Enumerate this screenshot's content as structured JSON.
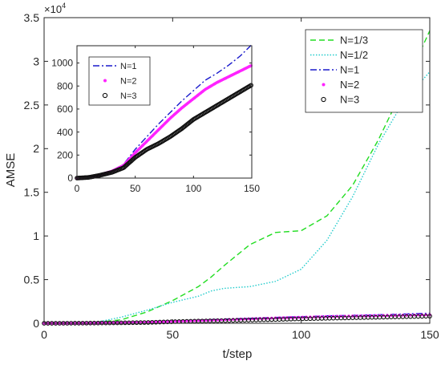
{
  "chart_data": [
    {
      "type": "line",
      "role": "main",
      "xlabel": "t/step",
      "ylabel": "AMSE",
      "y_exponent_label": "×10^4",
      "y_exponent_base": "×10",
      "y_exponent_power": "4",
      "xlim": [
        0,
        150
      ],
      "ylim": [
        0,
        3.5
      ],
      "xticks": [
        0,
        50,
        100,
        150
      ],
      "yticks": [
        0,
        0.5,
        1,
        1.5,
        2,
        2.5,
        3,
        3.5
      ],
      "grid": false,
      "legend_position": "top-right",
      "series": [
        {
          "name": "N=1/3",
          "color": "#22dd22",
          "style": "dashed",
          "x": [
            0,
            20,
            30,
            40,
            50,
            60,
            65,
            70,
            80,
            90,
            100,
            110,
            120,
            130,
            140,
            150
          ],
          "y": [
            0,
            0.01,
            0.04,
            0.13,
            0.26,
            0.42,
            0.53,
            0.66,
            0.9,
            1.04,
            1.06,
            1.23,
            1.58,
            2.1,
            2.71,
            3.35
          ]
        },
        {
          "name": "N=1/2",
          "color": "#22cccc",
          "style": "dotted",
          "x": [
            0,
            20,
            30,
            40,
            50,
            60,
            65,
            70,
            80,
            90,
            100,
            110,
            120,
            130,
            140,
            150
          ],
          "y": [
            0,
            0.01,
            0.07,
            0.15,
            0.24,
            0.31,
            0.37,
            0.4,
            0.42,
            0.48,
            0.62,
            0.95,
            1.45,
            2.05,
            2.55,
            2.88
          ]
        },
        {
          "name": "N=1",
          "color": "#1a1acc",
          "style": "dashdot",
          "x": [
            0,
            10,
            20,
            30,
            40,
            50,
            60,
            70,
            80,
            90,
            100,
            110,
            120,
            130,
            140,
            150
          ],
          "y": [
            0,
            0.0008,
            0.0035,
            0.0065,
            0.012,
            0.025,
            0.036,
            0.047,
            0.057,
            0.067,
            0.076,
            0.085,
            0.091,
            0.098,
            0.106,
            0.116
          ]
        },
        {
          "name": "N=2",
          "color": "#ff22ff",
          "style": "markers",
          "x": [
            0,
            10,
            20,
            30,
            40,
            50,
            60,
            70,
            80,
            90,
            100,
            110,
            120,
            130,
            140,
            150
          ],
          "y": [
            0,
            0.0007,
            0.003,
            0.006,
            0.011,
            0.022,
            0.032,
            0.042,
            0.052,
            0.061,
            0.069,
            0.077,
            0.083,
            0.088,
            0.093,
            0.098
          ]
        },
        {
          "name": "N=3",
          "color": "#111111",
          "style": "circles",
          "x": [
            0,
            10,
            20,
            30,
            40,
            50,
            60,
            70,
            80,
            90,
            100,
            110,
            120,
            130,
            140,
            150
          ],
          "y": [
            0,
            0.0006,
            0.0025,
            0.005,
            0.009,
            0.018,
            0.025,
            0.03,
            0.036,
            0.043,
            0.051,
            0.057,
            0.063,
            0.069,
            0.075,
            0.081
          ]
        }
      ]
    },
    {
      "type": "line",
      "role": "inset",
      "xlabel": "",
      "ylabel": "",
      "xlim": [
        0,
        150
      ],
      "ylim": [
        0,
        1150
      ],
      "xticks": [
        0,
        50,
        100,
        150
      ],
      "yticks": [
        0,
        200,
        400,
        600,
        800,
        1000
      ],
      "grid": false,
      "legend_position": "top-left",
      "series": [
        {
          "name": "N=1",
          "color": "#1a1acc",
          "style": "dashdot",
          "x": [
            0,
            10,
            20,
            30,
            40,
            50,
            60,
            70,
            80,
            90,
            100,
            110,
            120,
            130,
            140,
            150
          ],
          "y": [
            0,
            8,
            35,
            65,
            120,
            250,
            360,
            470,
            570,
            670,
            760,
            850,
            910,
            980,
            1060,
            1160
          ]
        },
        {
          "name": "N=2",
          "color": "#ff22ff",
          "style": "markers",
          "x": [
            0,
            10,
            20,
            30,
            40,
            50,
            60,
            70,
            80,
            90,
            100,
            110,
            120,
            130,
            140,
            150
          ],
          "y": [
            0,
            7,
            30,
            60,
            110,
            220,
            320,
            420,
            520,
            610,
            690,
            770,
            830,
            880,
            930,
            980
          ]
        },
        {
          "name": "N=3",
          "color": "#111111",
          "style": "circles",
          "x": [
            0,
            10,
            20,
            30,
            40,
            50,
            60,
            70,
            80,
            90,
            100,
            110,
            120,
            130,
            140,
            150
          ],
          "y": [
            0,
            6,
            25,
            50,
            90,
            180,
            250,
            300,
            360,
            430,
            510,
            570,
            630,
            690,
            750,
            810
          ]
        }
      ]
    }
  ]
}
